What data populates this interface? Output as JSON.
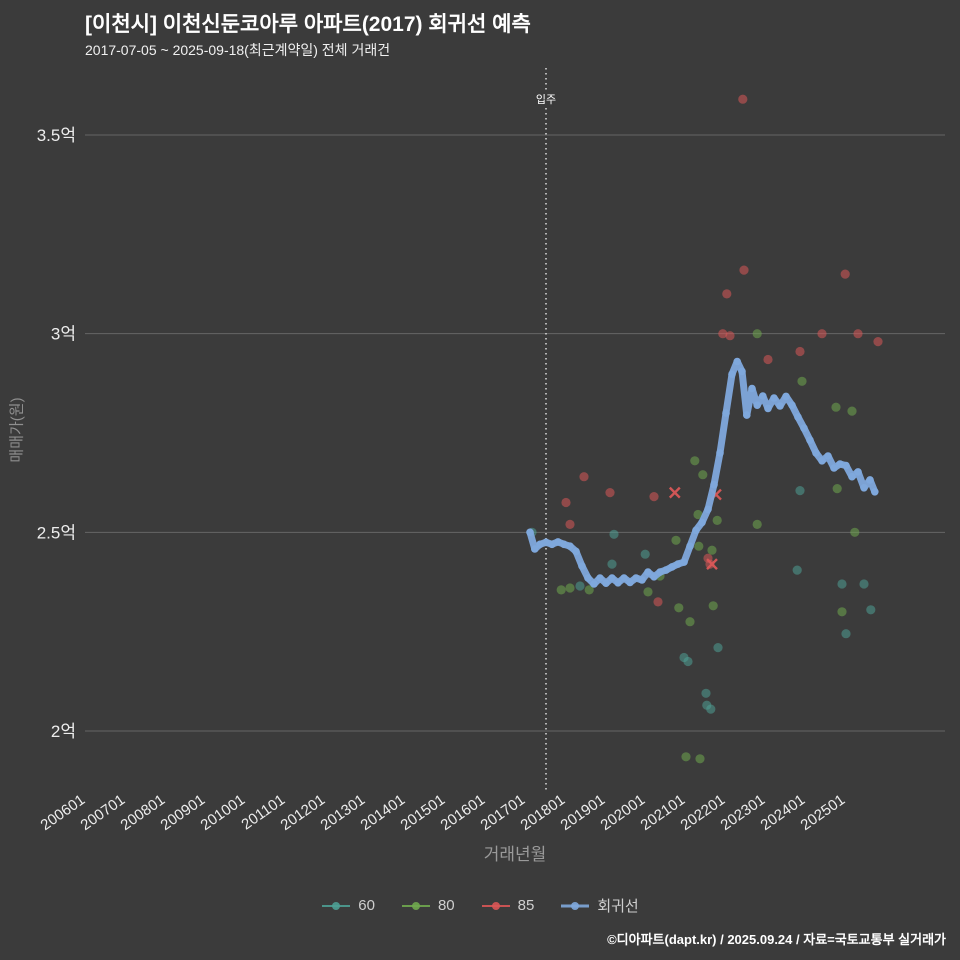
{
  "title": "[이천시] 이천신둔코아루 아파트(2017) 회귀선 예측",
  "subtitle": "2017-07-05 ~ 2025-09-18(최근계약일) 전체 거래건",
  "footer": "©디아파트(dapt.kr) / 2025.09.24 / 자료=국토교통부 실거래가",
  "colors": {
    "background": "#3b3b3b",
    "grid": "#909090",
    "axis_text": "#ededed",
    "muted_text": "#9a9a9a",
    "teal": "#4e9e94",
    "green": "#70a84f",
    "red": "#d95757",
    "blue": "#7fa8dc",
    "annotation": "#ffffff"
  },
  "chart_data": {
    "type": "scatter",
    "title": "[이천시] 이천신둔코아루 아파트(2017) 회귀선 예측",
    "xlabel": "거래년월",
    "ylabel": "매매가(원)",
    "ylim": [
      1.85,
      3.67
    ],
    "x_ticks": [
      "200601",
      "200701",
      "200801",
      "200901",
      "201001",
      "201101",
      "201201",
      "201301",
      "201401",
      "201501",
      "201601",
      "201701",
      "201801",
      "201901",
      "202001",
      "202101",
      "202201",
      "202301",
      "202401",
      "202501"
    ],
    "y_ticks": [
      {
        "label": "3.5억",
        "value": 3.5
      },
      {
        "label": "3억",
        "value": 3.0
      },
      {
        "label": "2.5억",
        "value": 2.5
      },
      {
        "label": "2억",
        "value": 2.0
      }
    ],
    "annotation": {
      "label": "입주",
      "year": 2017.5
    },
    "legend": [
      {
        "label": "60",
        "color_key": "teal"
      },
      {
        "label": "80",
        "color_key": "green"
      },
      {
        "label": "85",
        "color_key": "red"
      },
      {
        "label": "회귀선",
        "color_key": "blue"
      }
    ],
    "series": [
      {
        "name": "60",
        "color_key": "teal",
        "marker": "circle",
        "points": [
          [
            2017.15,
            2.5
          ],
          [
            2018.35,
            2.365
          ],
          [
            2019.15,
            2.42
          ],
          [
            2019.2,
            2.495
          ],
          [
            2019.98,
            2.445
          ],
          [
            2020.95,
            2.185
          ],
          [
            2021.05,
            2.175
          ],
          [
            2021.5,
            2.095
          ],
          [
            2021.52,
            2.065
          ],
          [
            2021.62,
            2.055
          ],
          [
            2021.8,
            2.21
          ],
          [
            2023.78,
            2.405
          ],
          [
            2023.85,
            2.605
          ],
          [
            2024.9,
            2.37
          ],
          [
            2025.0,
            2.245
          ],
          [
            2025.45,
            2.37
          ],
          [
            2025.62,
            2.305
          ]
        ]
      },
      {
        "name": "80",
        "color_key": "green",
        "marker": "circle",
        "points": [
          [
            2022.78,
            3.0
          ],
          [
            2023.9,
            2.88
          ],
          [
            2024.75,
            2.815
          ],
          [
            2025.15,
            2.805
          ],
          [
            2021.22,
            2.68
          ],
          [
            2021.42,
            2.645
          ],
          [
            2024.78,
            2.61
          ],
          [
            2021.3,
            2.545
          ],
          [
            2021.78,
            2.53
          ],
          [
            2022.78,
            2.52
          ],
          [
            2020.75,
            2.48
          ],
          [
            2021.32,
            2.465
          ],
          [
            2021.65,
            2.455
          ],
          [
            2025.22,
            2.5
          ],
          [
            2017.88,
            2.355
          ],
          [
            2018.1,
            2.36
          ],
          [
            2018.58,
            2.355
          ],
          [
            2020.05,
            2.35
          ],
          [
            2020.35,
            2.39
          ],
          [
            2020.82,
            2.31
          ],
          [
            2021.1,
            2.275
          ],
          [
            2021.68,
            2.315
          ],
          [
            2024.9,
            2.3
          ],
          [
            2021.0,
            1.935
          ],
          [
            2021.35,
            1.93
          ]
        ]
      },
      {
        "name": "85",
        "color_key": "red",
        "marker": "circle",
        "points": [
          [
            2022.42,
            3.59
          ],
          [
            2022.45,
            3.16
          ],
          [
            2022.02,
            3.1
          ],
          [
            2024.98,
            3.15
          ],
          [
            2021.92,
            3.0
          ],
          [
            2022.1,
            2.995
          ],
          [
            2024.4,
            3.0
          ],
          [
            2025.3,
            3.0
          ],
          [
            2025.8,
            2.98
          ],
          [
            2023.85,
            2.955
          ],
          [
            2023.05,
            2.935
          ],
          [
            2018.45,
            2.64
          ],
          [
            2019.1,
            2.6
          ],
          [
            2020.2,
            2.59
          ],
          [
            2018.0,
            2.575
          ],
          [
            2018.1,
            2.52
          ],
          [
            2020.3,
            2.325
          ],
          [
            2021.55,
            2.435
          ],
          [
            2021.6,
            2.42
          ]
        ]
      },
      {
        "name": "85-취소",
        "color_key": "red",
        "marker": "x",
        "points": [
          [
            2020.72,
            2.6
          ],
          [
            2021.75,
            2.595
          ],
          [
            2021.65,
            2.42
          ]
        ]
      },
      {
        "name": "회귀선",
        "color_key": "blue",
        "type": "line",
        "points": [
          [
            2017.1,
            2.5
          ],
          [
            2017.22,
            2.458
          ],
          [
            2017.35,
            2.47
          ],
          [
            2017.5,
            2.475
          ],
          [
            2017.65,
            2.47
          ],
          [
            2017.8,
            2.476
          ],
          [
            2017.95,
            2.47
          ],
          [
            2018.1,
            2.465
          ],
          [
            2018.25,
            2.452
          ],
          [
            2018.4,
            2.415
          ],
          [
            2018.55,
            2.385
          ],
          [
            2018.7,
            2.37
          ],
          [
            2018.85,
            2.385
          ],
          [
            2019.0,
            2.372
          ],
          [
            2019.15,
            2.385
          ],
          [
            2019.3,
            2.373
          ],
          [
            2019.45,
            2.385
          ],
          [
            2019.6,
            2.374
          ],
          [
            2019.75,
            2.385
          ],
          [
            2019.9,
            2.38
          ],
          [
            2020.05,
            2.4
          ],
          [
            2020.2,
            2.388
          ],
          [
            2020.35,
            2.4
          ],
          [
            2020.5,
            2.405
          ],
          [
            2020.65,
            2.413
          ],
          [
            2020.8,
            2.42
          ],
          [
            2020.95,
            2.425
          ],
          [
            2021.1,
            2.465
          ],
          [
            2021.25,
            2.505
          ],
          [
            2021.4,
            2.525
          ],
          [
            2021.55,
            2.558
          ],
          [
            2021.7,
            2.62
          ],
          [
            2021.85,
            2.7
          ],
          [
            2022.0,
            2.8
          ],
          [
            2022.15,
            2.898
          ],
          [
            2022.28,
            2.93
          ],
          [
            2022.4,
            2.905
          ],
          [
            2022.52,
            2.795
          ],
          [
            2022.65,
            2.862
          ],
          [
            2022.78,
            2.82
          ],
          [
            2022.92,
            2.843
          ],
          [
            2023.05,
            2.812
          ],
          [
            2023.2,
            2.838
          ],
          [
            2023.35,
            2.818
          ],
          [
            2023.5,
            2.842
          ],
          [
            2023.65,
            2.82
          ],
          [
            2023.8,
            2.79
          ],
          [
            2023.95,
            2.762
          ],
          [
            2024.1,
            2.732
          ],
          [
            2024.25,
            2.7
          ],
          [
            2024.4,
            2.68
          ],
          [
            2024.55,
            2.692
          ],
          [
            2024.7,
            2.662
          ],
          [
            2024.85,
            2.672
          ],
          [
            2025.0,
            2.668
          ],
          [
            2025.15,
            2.64
          ],
          [
            2025.3,
            2.652
          ],
          [
            2025.45,
            2.612
          ],
          [
            2025.6,
            2.632
          ],
          [
            2025.72,
            2.602
          ]
        ]
      }
    ]
  }
}
